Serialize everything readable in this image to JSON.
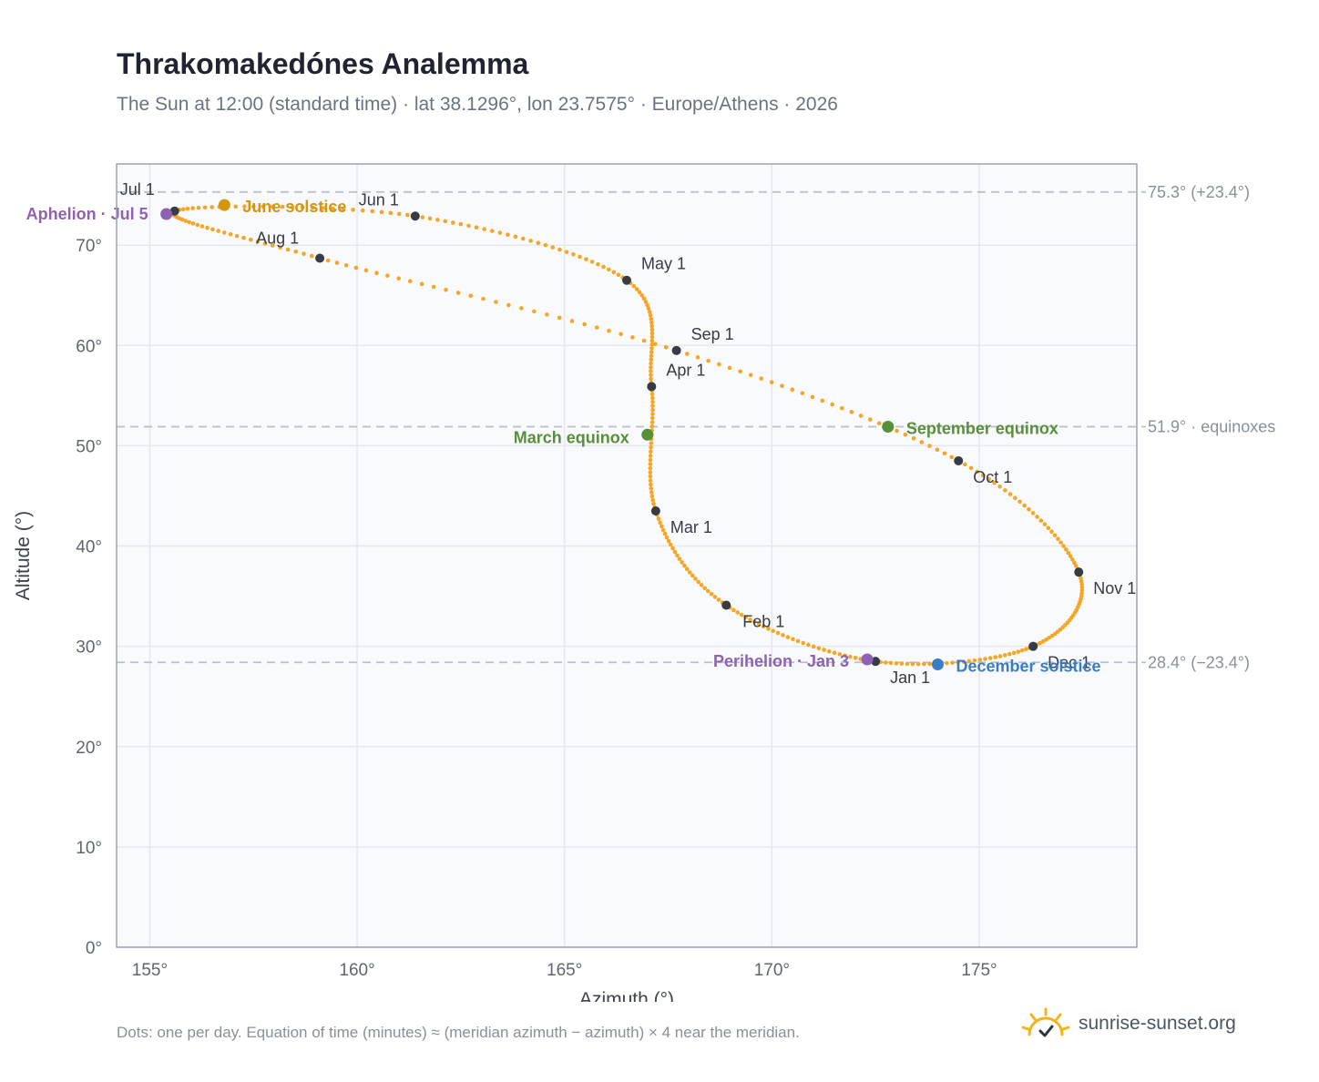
{
  "header": {
    "title": "Thrakomakedónes Analemma",
    "subtitle": "The Sun at 12:00 (standard time) · lat 38.1296°, lon 23.7575° · Europe/Athens · 2026"
  },
  "footer": {
    "note": "Dots: one per day. Equation of time (minutes) ≈ (meridian azimuth − azimuth) × 4 near the meridian.",
    "brand": "sunrise-sunset.org",
    "brand_icon": "sun-check-icon"
  },
  "colors": {
    "analemma": "#f5a623",
    "month_marker": "#363b45",
    "solstice_june": "#d4960f",
    "solstice_december": "#3b7dc4",
    "equinox": "#5a8f3a",
    "apsis": "#8e62b3",
    "reference_line": "#b9c1cc",
    "plot_background": "#f8fafd",
    "grid": "#e4e8ee",
    "axis_text": "#5f6570"
  },
  "chart_data": {
    "type": "scatter",
    "xlabel": "Azimuth (°)",
    "ylabel": "Altitude (°)",
    "xlim": [
      154.2,
      178.8
    ],
    "ylim": [
      0,
      78.1
    ],
    "x_ticks": [
      {
        "value": 155,
        "label": "155°"
      },
      {
        "value": 160,
        "label": "160°"
      },
      {
        "value": 165,
        "label": "165°"
      },
      {
        "value": 170,
        "label": "170°"
      },
      {
        "value": 175,
        "label": "175°"
      }
    ],
    "y_ticks": [
      {
        "value": 0,
        "label": "0°"
      },
      {
        "value": 10,
        "label": "10°"
      },
      {
        "value": 20,
        "label": "20°"
      },
      {
        "value": 30,
        "label": "30°"
      },
      {
        "value": 40,
        "label": "40°"
      },
      {
        "value": 50,
        "label": "50°"
      },
      {
        "value": 60,
        "label": "60°"
      },
      {
        "value": 70,
        "label": "70°"
      }
    ],
    "grid": true,
    "reference_lines": [
      {
        "y": 75.3,
        "label": "75.3° (+23.4°)"
      },
      {
        "y": 51.9,
        "label": "51.9° · equinoxes"
      },
      {
        "y": 28.4,
        "label": "28.4° (−23.4°)"
      }
    ],
    "month_markers": [
      {
        "label": "Jan 1",
        "azimuth": 172.5,
        "altitude": 28.5
      },
      {
        "label": "Feb 1",
        "azimuth": 168.9,
        "altitude": 34.1
      },
      {
        "label": "Mar 1",
        "azimuth": 167.2,
        "altitude": 43.5
      },
      {
        "label": "Apr 1",
        "azimuth": 167.1,
        "altitude": 55.9
      },
      {
        "label": "May 1",
        "azimuth": 166.5,
        "altitude": 66.5
      },
      {
        "label": "Jun 1",
        "azimuth": 161.4,
        "altitude": 72.9
      },
      {
        "label": "Jul 1",
        "azimuth": 155.6,
        "altitude": 73.4
      },
      {
        "label": "Aug 1",
        "azimuth": 159.1,
        "altitude": 68.7
      },
      {
        "label": "Sep 1",
        "azimuth": 167.7,
        "altitude": 59.5
      },
      {
        "label": "Oct 1",
        "azimuth": 174.5,
        "altitude": 48.5
      },
      {
        "label": "Nov 1",
        "azimuth": 177.4,
        "altitude": 37.4
      },
      {
        "label": "Dec 1",
        "azimuth": 176.3,
        "altitude": 30.0
      }
    ],
    "events": [
      {
        "label": "June solstice",
        "azimuth": 156.8,
        "altitude": 74.0,
        "color": "#d4960f"
      },
      {
        "label": "March equinox",
        "azimuth": 167.0,
        "altitude": 51.1,
        "color": "#5a8f3a"
      },
      {
        "label": "September equinox",
        "azimuth": 172.8,
        "altitude": 51.9,
        "color": "#5a8f3a"
      },
      {
        "label": "December solstice",
        "azimuth": 174.0,
        "altitude": 28.2,
        "color": "#3b7dc4"
      },
      {
        "label": "Aphelion · Jul 5",
        "azimuth": 155.4,
        "altitude": 73.1,
        "color": "#8e62b3"
      },
      {
        "label": "Perihelion · Jan 3",
        "azimuth": 172.3,
        "altitude": 28.7,
        "color": "#8e62b3"
      }
    ]
  }
}
